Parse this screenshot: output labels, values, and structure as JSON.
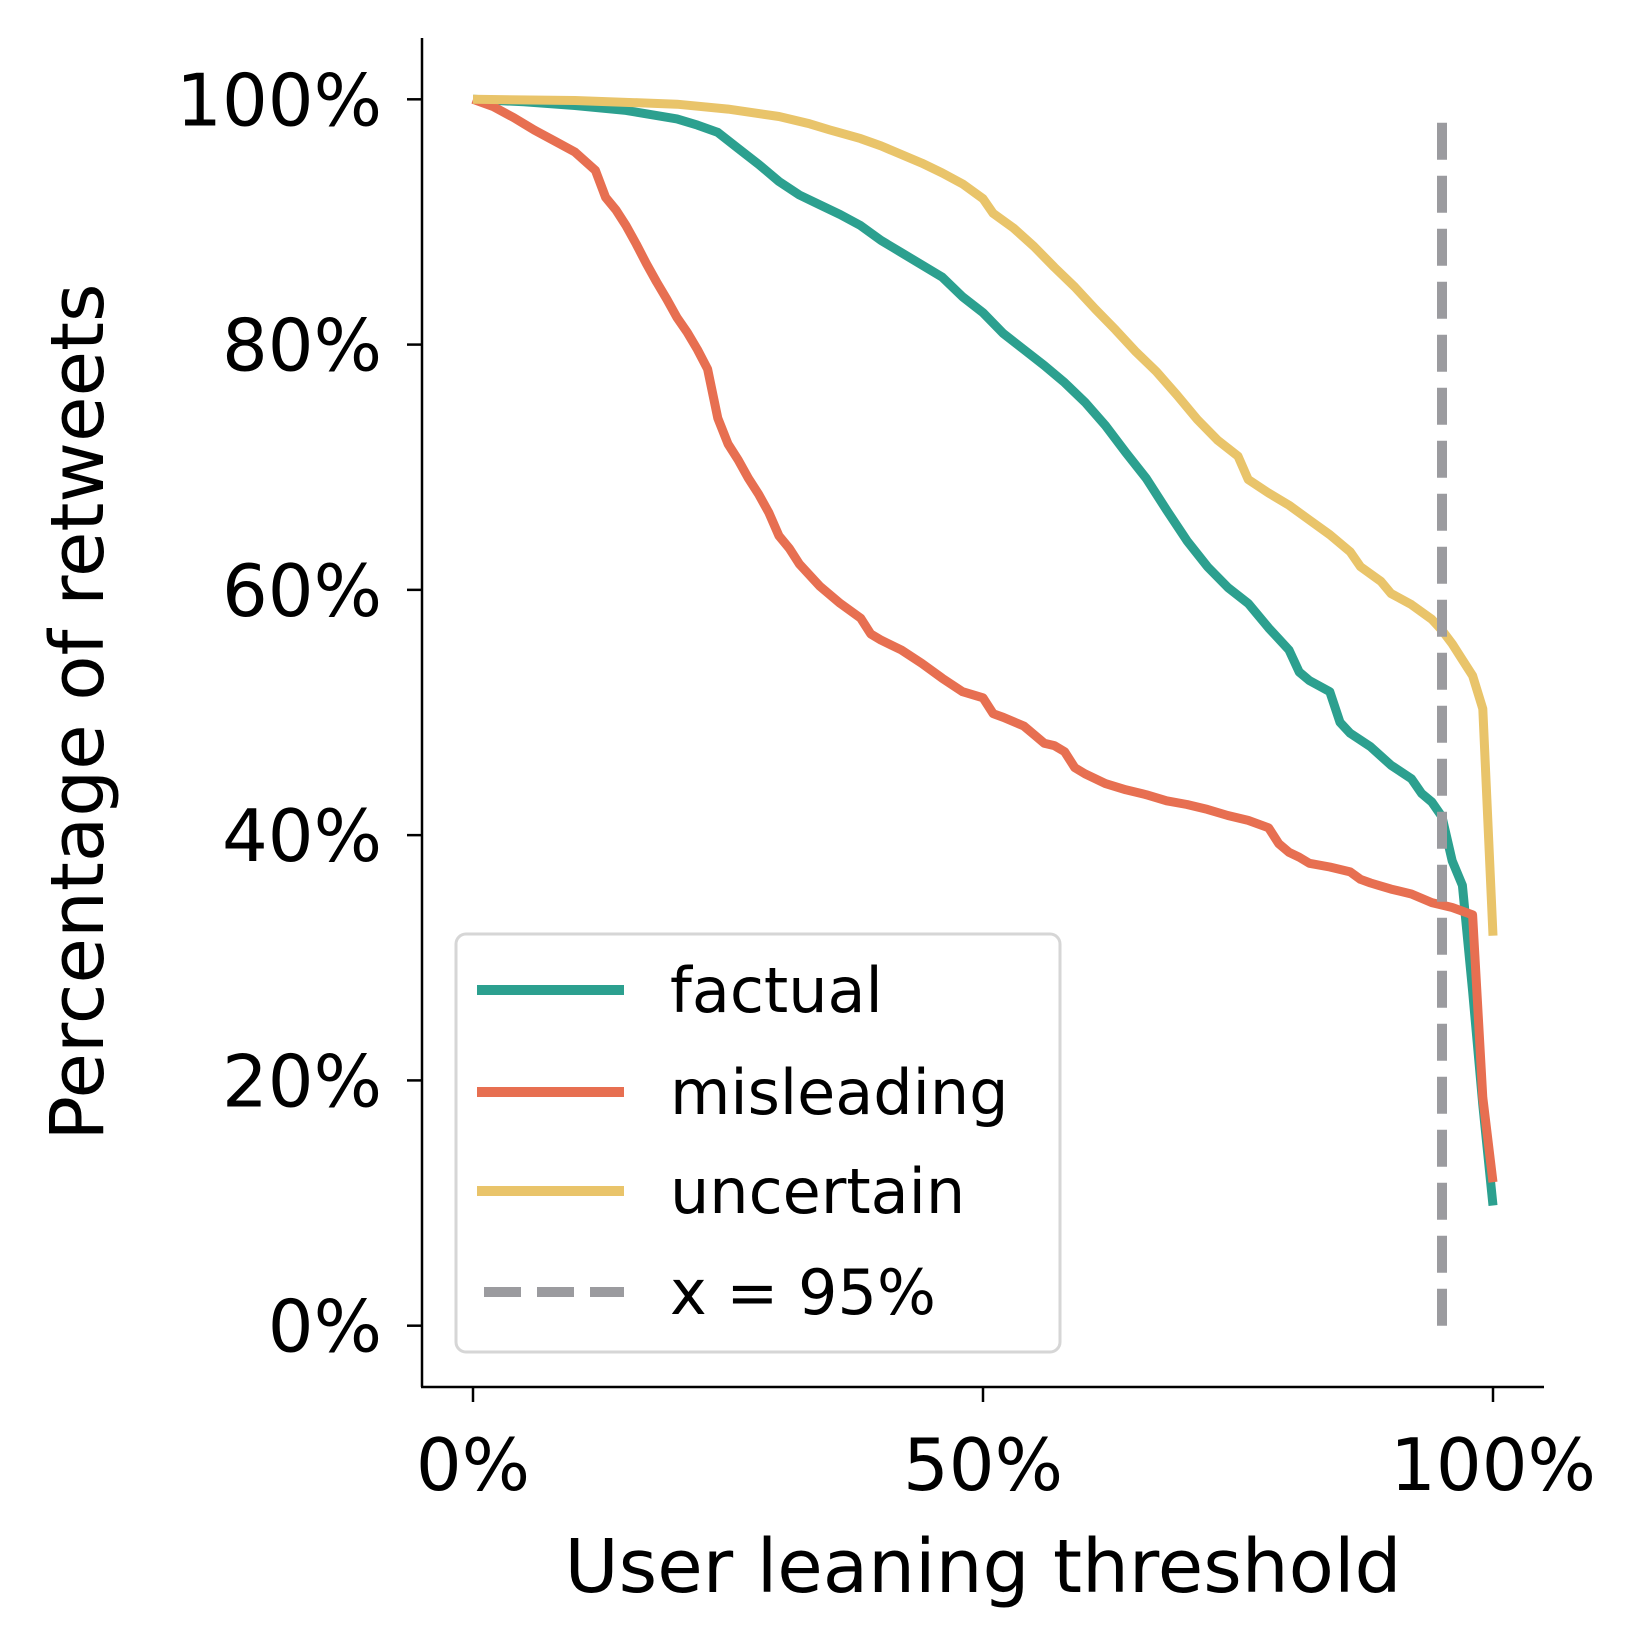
{
  "chart_data": {
    "type": "line",
    "xlabel": "User leaning threshold",
    "ylabel": "Percentage of retweets",
    "xlim": [
      -5,
      105
    ],
    "ylim": [
      -5,
      105
    ],
    "x_ticks": [
      0,
      50,
      100
    ],
    "x_tick_labels": [
      "0%",
      "50%",
      "100%"
    ],
    "y_ticks": [
      0,
      20,
      40,
      60,
      80,
      100
    ],
    "y_tick_labels": [
      "0%",
      "20%",
      "40%",
      "60%",
      "80%",
      "100%"
    ],
    "grid": false,
    "legend_position": "lower-left",
    "series": [
      {
        "name": "factual",
        "color": "#2ca08f",
        "points": [
          [
            0,
            100
          ],
          [
            5,
            99.8
          ],
          [
            10,
            99.5
          ],
          [
            15,
            99.1
          ],
          [
            20,
            98.4
          ],
          [
            22,
            97.9
          ],
          [
            24,
            97.3
          ],
          [
            26,
            96
          ],
          [
            28,
            94.7
          ],
          [
            30,
            93.3
          ],
          [
            32,
            92.2
          ],
          [
            34,
            91.4
          ],
          [
            36,
            90.6
          ],
          [
            38,
            89.7
          ],
          [
            40,
            88.5
          ],
          [
            42,
            87.5
          ],
          [
            44,
            86.5
          ],
          [
            46,
            85.5
          ],
          [
            48,
            83.9
          ],
          [
            50,
            82.6
          ],
          [
            52,
            80.9
          ],
          [
            54,
            79.6
          ],
          [
            56,
            78.3
          ],
          [
            58,
            76.9
          ],
          [
            60,
            75.3
          ],
          [
            62,
            73.4
          ],
          [
            64,
            71.2
          ],
          [
            66,
            69.1
          ],
          [
            68,
            66.5
          ],
          [
            70,
            64
          ],
          [
            72,
            61.9
          ],
          [
            74,
            60.2
          ],
          [
            76,
            58.9
          ],
          [
            78,
            56.9
          ],
          [
            80,
            55.1
          ],
          [
            81,
            53.3
          ],
          [
            82,
            52.6
          ],
          [
            84,
            51.7
          ],
          [
            85,
            49.2
          ],
          [
            86,
            48.3
          ],
          [
            88,
            47.2
          ],
          [
            90,
            45.7
          ],
          [
            92,
            44.6
          ],
          [
            93,
            43.4
          ],
          [
            94,
            42.7
          ],
          [
            95,
            41.5
          ],
          [
            96,
            37.9
          ],
          [
            97,
            35.9
          ],
          [
            98,
            27.3
          ],
          [
            99,
            18
          ],
          [
            100,
            9.8
          ]
        ]
      },
      {
        "name": "misleading",
        "color": "#e76f51",
        "points": [
          [
            0,
            100
          ],
          [
            2,
            99.4
          ],
          [
            4,
            98.5
          ],
          [
            6,
            97.5
          ],
          [
            8,
            96.6
          ],
          [
            10,
            95.7
          ],
          [
            12,
            94.2
          ],
          [
            13,
            92
          ],
          [
            14,
            91
          ],
          [
            15,
            89.7
          ],
          [
            16,
            88.2
          ],
          [
            17,
            86.6
          ],
          [
            18,
            85.1
          ],
          [
            19,
            83.7
          ],
          [
            20,
            82.2
          ],
          [
            21,
            81
          ],
          [
            22,
            79.6
          ],
          [
            23,
            78
          ],
          [
            24,
            74
          ],
          [
            25,
            71.9
          ],
          [
            26,
            70.6
          ],
          [
            27,
            69.1
          ],
          [
            28,
            67.8
          ],
          [
            29,
            66.3
          ],
          [
            30,
            64.4
          ],
          [
            31,
            63.4
          ],
          [
            32,
            62.1
          ],
          [
            34,
            60.3
          ],
          [
            36,
            58.9
          ],
          [
            38,
            57.7
          ],
          [
            39,
            56.4
          ],
          [
            40,
            55.9
          ],
          [
            42,
            55.1
          ],
          [
            44,
            54
          ],
          [
            46,
            52.8
          ],
          [
            48,
            51.7
          ],
          [
            50,
            51.2
          ],
          [
            51,
            49.9
          ],
          [
            52,
            49.6
          ],
          [
            54,
            48.9
          ],
          [
            55,
            48.2
          ],
          [
            56,
            47.5
          ],
          [
            57,
            47.3
          ],
          [
            58,
            46.8
          ],
          [
            59,
            45.5
          ],
          [
            60,
            45
          ],
          [
            62,
            44.2
          ],
          [
            64,
            43.7
          ],
          [
            66,
            43.3
          ],
          [
            68,
            42.8
          ],
          [
            70,
            42.5
          ],
          [
            72,
            42.1
          ],
          [
            74,
            41.6
          ],
          [
            76,
            41.2
          ],
          [
            78,
            40.6
          ],
          [
            79,
            39.3
          ],
          [
            80,
            38.6
          ],
          [
            81,
            38.2
          ],
          [
            82,
            37.7
          ],
          [
            84,
            37.4
          ],
          [
            86,
            37
          ],
          [
            87,
            36.4
          ],
          [
            88,
            36.1
          ],
          [
            90,
            35.6
          ],
          [
            92,
            35.2
          ],
          [
            94,
            34.5
          ],
          [
            96,
            34.1
          ],
          [
            98,
            33.5
          ],
          [
            99,
            18.6
          ],
          [
            100,
            11.7
          ]
        ]
      },
      {
        "name": "uncertain",
        "color": "#e9c46a",
        "points": [
          [
            0,
            100
          ],
          [
            10,
            99.9
          ],
          [
            20,
            99.6
          ],
          [
            25,
            99.2
          ],
          [
            30,
            98.6
          ],
          [
            33,
            98
          ],
          [
            35,
            97.5
          ],
          [
            38,
            96.8
          ],
          [
            40,
            96.2
          ],
          [
            42,
            95.5
          ],
          [
            44,
            94.8
          ],
          [
            46,
            94
          ],
          [
            48,
            93.1
          ],
          [
            50,
            91.9
          ],
          [
            51,
            90.7
          ],
          [
            53,
            89.5
          ],
          [
            55,
            88
          ],
          [
            57,
            86.3
          ],
          [
            59,
            84.7
          ],
          [
            61,
            82.9
          ],
          [
            63,
            81.2
          ],
          [
            65,
            79.4
          ],
          [
            67,
            77.8
          ],
          [
            69,
            75.9
          ],
          [
            71,
            73.9
          ],
          [
            73,
            72.2
          ],
          [
            75,
            70.9
          ],
          [
            76,
            69
          ],
          [
            78,
            67.9
          ],
          [
            80,
            66.9
          ],
          [
            82,
            65.7
          ],
          [
            84,
            64.5
          ],
          [
            86,
            63.1
          ],
          [
            87,
            61.9
          ],
          [
            89,
            60.7
          ],
          [
            90,
            59.7
          ],
          [
            92,
            58.8
          ],
          [
            94,
            57.6
          ],
          [
            95,
            56.7
          ],
          [
            96,
            55.6
          ],
          [
            97,
            54.3
          ],
          [
            98,
            53
          ],
          [
            99,
            50.3
          ],
          [
            100,
            31.8
          ]
        ]
      },
      {
        "name": "x = 95%",
        "color": "#9b9b9f",
        "dashed": true,
        "points": [
          [
            95,
            0
          ],
          [
            95,
            99
          ]
        ]
      }
    ]
  }
}
